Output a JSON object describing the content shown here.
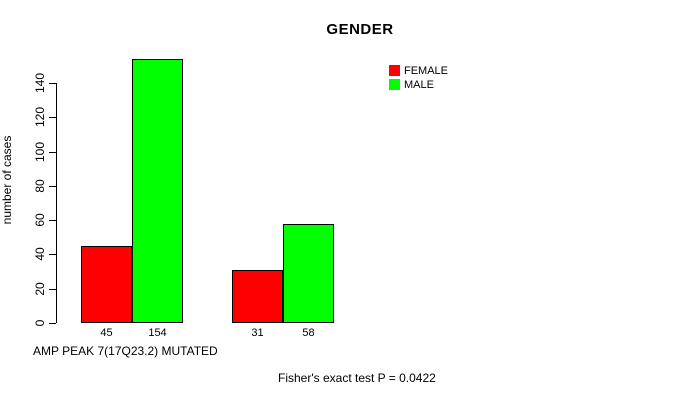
{
  "chart_data": {
    "type": "bar",
    "title": "GENDER",
    "ylabel": "number of cases",
    "xlabel": "AMP PEAK 7(17Q23.2) MUTATED",
    "annotation": "Fisher's exact test P = 0.0422",
    "series": [
      {
        "name": "FEMALE",
        "color": "#FF0000",
        "values": [
          45,
          31
        ]
      },
      {
        "name": "MALE",
        "color": "#00FF00",
        "values": [
          154,
          58
        ]
      }
    ],
    "bar_value_labels": [
      [
        45,
        154
      ],
      [
        31,
        58
      ]
    ],
    "yticks": [
      0,
      20,
      40,
      60,
      80,
      100,
      120,
      140
    ],
    "ylim": [
      0,
      154
    ],
    "grid": false,
    "legend_position": "top-right",
    "background_color": "#FFFFFF",
    "axis_color": "#000000"
  }
}
